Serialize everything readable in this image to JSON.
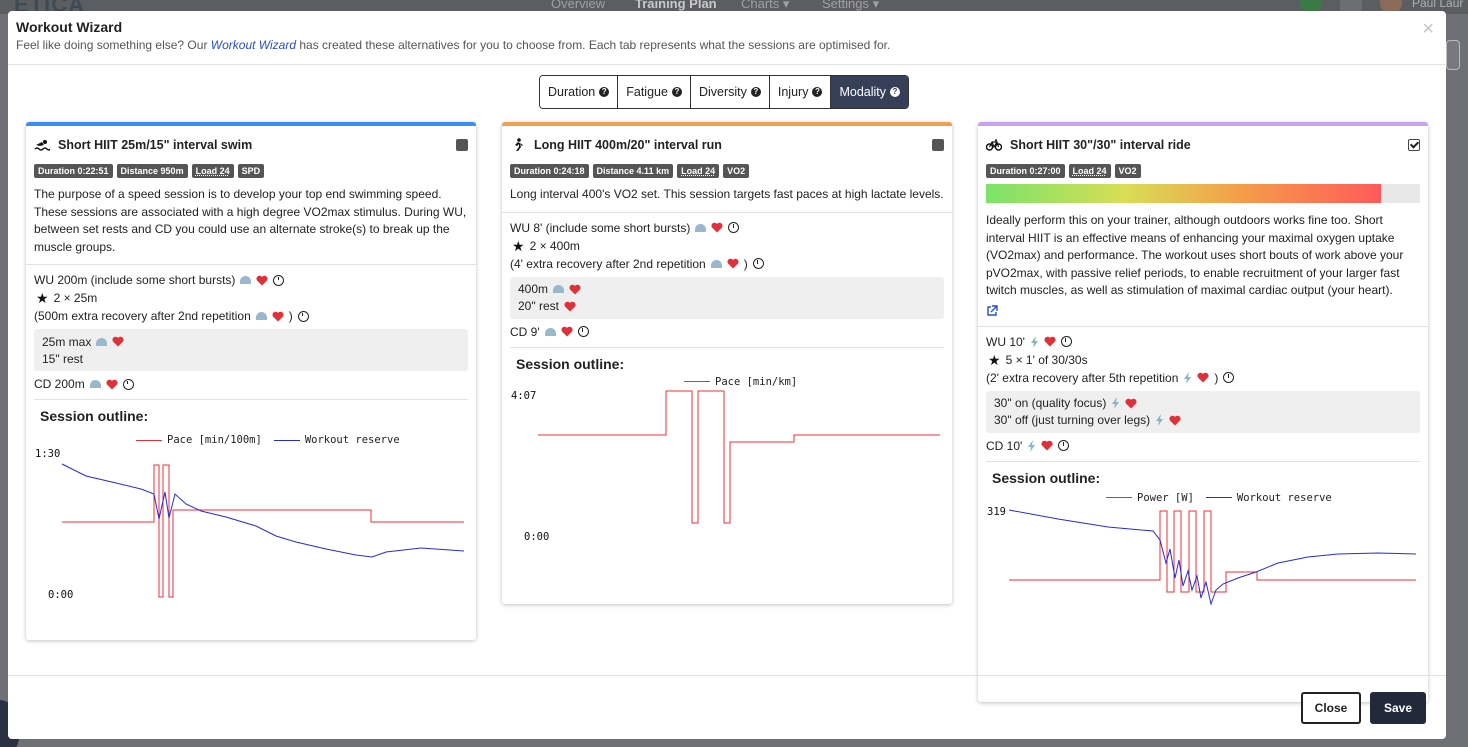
{
  "background": {
    "logo": "ETICA",
    "nav": [
      "Overview",
      "Training Plan",
      "Charts ▾",
      "Settings ▾"
    ],
    "user": "Paul Laur"
  },
  "modal": {
    "title": "Workout Wizard",
    "subtitle_before": "Feel like doing something else? Our ",
    "subtitle_link": "Workout Wizard",
    "subtitle_after": " has created these alternatives for you to choose from. Each tab represents what the sessions are optimised for.",
    "close_symbol": "×"
  },
  "tabs": [
    {
      "label": "Duration",
      "active": false
    },
    {
      "label": "Fatigue",
      "active": false
    },
    {
      "label": "Diversity",
      "active": false
    },
    {
      "label": "Injury",
      "active": false
    },
    {
      "label": "Modality",
      "active": true
    }
  ],
  "icons": {
    "help": "question-circle-icon",
    "swim": "swimmer-icon",
    "run": "runner-icon",
    "ride": "bicycle-icon"
  },
  "colors": {
    "swim": "#3a8ef0",
    "run": "#f0a050",
    "ride": "#c7a3f0",
    "pace": "#e8303c",
    "reserve": "#2a2ad8",
    "tab_active": "#363f58"
  },
  "cards": [
    {
      "title": "Short HIIT 25m/15\" interval swim",
      "selected": false,
      "badges": [
        "Duration 0:22:51",
        "Distance 950m",
        "Load 24",
        "SPD"
      ],
      "description": "The purpose of a speed session is to develop your top end swimming speed. These sessions are associated with a high degree VO2max stimulus. During WU, between set rests and CD you could use an alternate stroke(s) to break up the muscle groups.",
      "wu": "WU 200m (include some short bursts)",
      "set": "2 × 25m",
      "extra": "(500m extra recovery after 2nd repetition",
      "extra_close": ")",
      "box": [
        "25m max",
        "15\" rest"
      ],
      "cd": "CD 200m",
      "outline_title": "Session outline:",
      "legend": [
        "Pace [min/100m]",
        "Workout reserve"
      ],
      "ymax": "1:30",
      "ymin": "0:00"
    },
    {
      "title": "Long HIIT 400m/20\" interval run",
      "selected": false,
      "badges": [
        "Duration 0:24:18",
        "Distance 4.11 km",
        "Load 24",
        "VO2"
      ],
      "description": "Long interval 400's VO2 set. This session targets fast paces at high lactate levels.",
      "wu": "WU 8' (include some short bursts)",
      "set": "2 × 400m",
      "extra": "(4' extra recovery after 2nd repetition",
      "extra_close": ")",
      "box": [
        "400m",
        "20\" rest"
      ],
      "cd": "CD 9'",
      "outline_title": "Session outline:",
      "legend": [
        "Pace [min/km]"
      ],
      "ymax": "4:07",
      "ymin": "0:00"
    },
    {
      "title": "Short HIIT 30\"/30\" interval ride",
      "selected": true,
      "badges": [
        "Duration 0:27:00",
        "Load 24",
        "VO2"
      ],
      "power_fill": 0.91,
      "description": "Ideally perform this on your trainer, although outdoors works fine too. Short interval HIIT is an effective means of enhancing your maximal oxygen uptake (VO2max) and performance. The workout uses short bouts of work above your pVO2max, with passive relief periods, to enable recruitment of your larger fast twitch muscles, as well as stimulation of maximal cardiac output (your heart).",
      "wu": "WU 10'",
      "set": "5 × 1' of 30/30s",
      "extra": "(2' extra recovery after 5th repetition",
      "extra_close": ")",
      "box": [
        "30\" on (quality focus)",
        "30\" off (just turning over legs)"
      ],
      "cd": "CD 10'",
      "outline_title": "Session outline:",
      "legend": [
        "Power [W]",
        "Workout reserve"
      ],
      "ymax": "319"
    }
  ],
  "footer": {
    "close": "Close",
    "save": "Save"
  }
}
